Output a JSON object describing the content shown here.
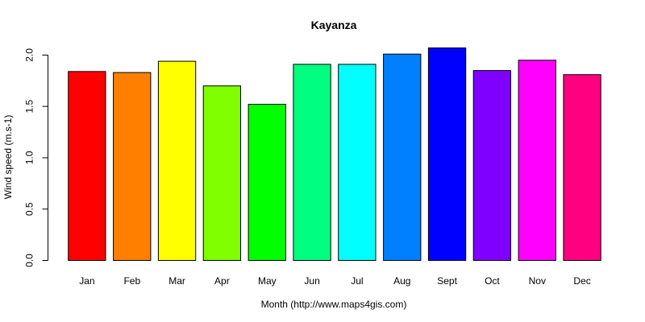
{
  "chart_data": {
    "type": "bar",
    "title": "Kayanza",
    "xlabel": "Month (http://www.maps4gis.com)",
    "ylabel": "Wind speed (m.s-1)",
    "categories": [
      "Jan",
      "Feb",
      "Mar",
      "Apr",
      "May",
      "Jun",
      "Jul",
      "Aug",
      "Sept",
      "Oct",
      "Nov",
      "Dec"
    ],
    "values": [
      1.84,
      1.83,
      1.94,
      1.7,
      1.52,
      1.91,
      1.91,
      2.01,
      2.07,
      1.85,
      1.95,
      1.81
    ],
    "colors": [
      "#FF0000",
      "#FF8000",
      "#FFFF00",
      "#80FF00",
      "#00FF00",
      "#00FF80",
      "#00FFFF",
      "#0080FF",
      "#0000FF",
      "#8000FF",
      "#FF00FF",
      "#FF0080"
    ],
    "yticks": [
      "0.0",
      "0.5",
      "1.0",
      "1.5",
      "2.0"
    ],
    "ylim": [
      0,
      2.07
    ],
    "grid": false,
    "legend": "none"
  }
}
